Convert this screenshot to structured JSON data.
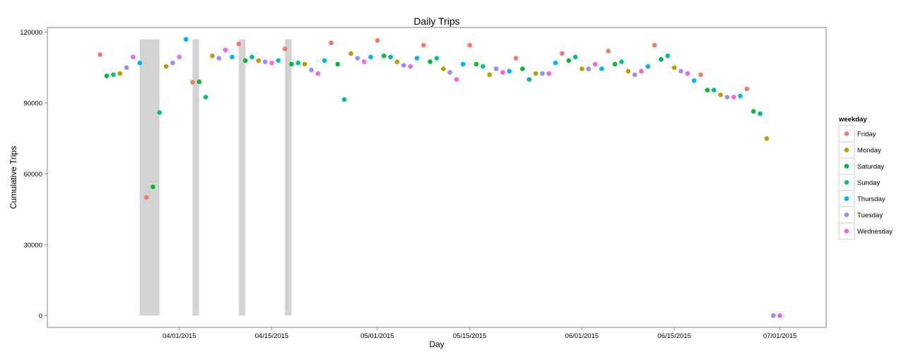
{
  "chart_data": {
    "type": "scatter",
    "title": "Daily Trips",
    "xlabel": "Day",
    "ylabel": "Cumulative Trips",
    "ylim": [
      -5000,
      122000
    ],
    "xlim": [
      "2015-03-12",
      "2015-07-08"
    ],
    "y_ticks": [
      {
        "value": 0,
        "label": "0"
      },
      {
        "value": 30000,
        "label": "30000"
      },
      {
        "value": 60000,
        "label": "60000"
      },
      {
        "value": 90000,
        "label": "90000"
      },
      {
        "value": 120000,
        "label": "120000"
      }
    ],
    "x_ticks": [
      {
        "value": "2015-04-01",
        "label": "04/01/2015"
      },
      {
        "value": "2015-04-15",
        "label": "04/15/2015"
      },
      {
        "value": "2015-05-01",
        "label": "05/01/2015"
      },
      {
        "value": "2015-05-15",
        "label": "05/15/2015"
      },
      {
        "value": "2015-06-01",
        "label": "06/01/2015"
      },
      {
        "value": "2015-06-15",
        "label": "06/15/2015"
      },
      {
        "value": "2015-07-01",
        "label": "07/01/2015"
      }
    ],
    "grid": false,
    "legend": {
      "title": "weekday",
      "position": "right"
    },
    "shaded_bands": [
      {
        "x_start": "2015-03-26",
        "x_end": "2015-03-29",
        "y_max": 117000
      },
      {
        "x_start": "2015-04-03",
        "x_end": "2015-04-04",
        "y_max": 117000
      },
      {
        "x_start": "2015-04-10",
        "x_end": "2015-04-11",
        "y_max": 117000
      },
      {
        "x_start": "2015-04-17",
        "x_end": "2015-04-18",
        "y_max": 117000
      }
    ],
    "series": [
      {
        "name": "Friday",
        "color": "#F8766D",
        "points": [
          {
            "x": "2015-03-20",
            "y": 110500
          },
          {
            "x": "2015-03-27",
            "y": 50000
          },
          {
            "x": "2015-04-03",
            "y": 98800
          },
          {
            "x": "2015-04-10",
            "y": 115000
          },
          {
            "x": "2015-04-17",
            "y": 113000
          },
          {
            "x": "2015-04-24",
            "y": 115500
          },
          {
            "x": "2015-05-01",
            "y": 116500
          },
          {
            "x": "2015-05-08",
            "y": 114500
          },
          {
            "x": "2015-05-15",
            "y": 114500
          },
          {
            "x": "2015-05-22",
            "y": 109000
          },
          {
            "x": "2015-05-29",
            "y": 111000
          },
          {
            "x": "2015-06-05",
            "y": 112000
          },
          {
            "x": "2015-06-12",
            "y": 114500
          },
          {
            "x": "2015-06-19",
            "y": 102000
          },
          {
            "x": "2015-06-26",
            "y": 96000
          }
        ]
      },
      {
        "name": "Monday",
        "color": "#B79F00",
        "points": [
          {
            "x": "2015-03-23",
            "y": 102500
          },
          {
            "x": "2015-03-30",
            "y": 105500
          },
          {
            "x": "2015-04-06",
            "y": 110000
          },
          {
            "x": "2015-04-13",
            "y": 108000
          },
          {
            "x": "2015-04-20",
            "y": 106500
          },
          {
            "x": "2015-04-27",
            "y": 111000
          },
          {
            "x": "2015-05-04",
            "y": 107500
          },
          {
            "x": "2015-05-11",
            "y": 104500
          },
          {
            "x": "2015-05-18",
            "y": 102000
          },
          {
            "x": "2015-05-25",
            "y": 102500
          },
          {
            "x": "2015-06-01",
            "y": 104500
          },
          {
            "x": "2015-06-08",
            "y": 103500
          },
          {
            "x": "2015-06-15",
            "y": 105000
          },
          {
            "x": "2015-06-22",
            "y": 93500
          },
          {
            "x": "2015-06-29",
            "y": 75000
          }
        ]
      },
      {
        "name": "Saturday",
        "color": "#00BA38",
        "points": [
          {
            "x": "2015-03-21",
            "y": 101500
          },
          {
            "x": "2015-03-28",
            "y": 54500
          },
          {
            "x": "2015-04-04",
            "y": 99000
          },
          {
            "x": "2015-04-11",
            "y": 108000
          },
          {
            "x": "2015-04-18",
            "y": 106500
          },
          {
            "x": "2015-04-25",
            "y": 106500
          },
          {
            "x": "2015-05-02",
            "y": 110000
          },
          {
            "x": "2015-05-09",
            "y": 107500
          },
          {
            "x": "2015-05-16",
            "y": 106500
          },
          {
            "x": "2015-05-23",
            "y": 104500
          },
          {
            "x": "2015-05-30",
            "y": 108000
          },
          {
            "x": "2015-06-06",
            "y": 106500
          },
          {
            "x": "2015-06-13",
            "y": 108500
          },
          {
            "x": "2015-06-20",
            "y": 95500
          },
          {
            "x": "2015-06-27",
            "y": 86500
          }
        ]
      },
      {
        "name": "Sunday",
        "color": "#00C08B",
        "points": [
          {
            "x": "2015-03-22",
            "y": 102000
          },
          {
            "x": "2015-03-29",
            "y": 86000
          },
          {
            "x": "2015-04-05",
            "y": 92500
          },
          {
            "x": "2015-04-12",
            "y": 109500
          },
          {
            "x": "2015-04-19",
            "y": 107000
          },
          {
            "x": "2015-04-26",
            "y": 91500
          },
          {
            "x": "2015-05-03",
            "y": 109500
          },
          {
            "x": "2015-05-10",
            "y": 109000
          },
          {
            "x": "2015-05-17",
            "y": 105500
          },
          {
            "x": "2015-05-24",
            "y": 100000
          },
          {
            "x": "2015-05-31",
            "y": 109500
          },
          {
            "x": "2015-06-07",
            "y": 107500
          },
          {
            "x": "2015-06-14",
            "y": 110000
          },
          {
            "x": "2015-06-21",
            "y": 95500
          },
          {
            "x": "2015-06-28",
            "y": 85500
          }
        ]
      },
      {
        "name": "Thursday",
        "color": "#00B4F0",
        "points": [
          {
            "x": "2015-03-26",
            "y": 107000
          },
          {
            "x": "2015-04-02",
            "y": 117000
          },
          {
            "x": "2015-04-09",
            "y": 109500
          },
          {
            "x": "2015-04-16",
            "y": 108000
          },
          {
            "x": "2015-04-23",
            "y": 108000
          },
          {
            "x": "2015-04-30",
            "y": 109500
          },
          {
            "x": "2015-05-07",
            "y": 109000
          },
          {
            "x": "2015-05-14",
            "y": 106500
          },
          {
            "x": "2015-05-21",
            "y": 103500
          },
          {
            "x": "2015-05-28",
            "y": 107000
          },
          {
            "x": "2015-06-04",
            "y": 104500
          },
          {
            "x": "2015-06-11",
            "y": 105500
          },
          {
            "x": "2015-06-18",
            "y": 99500
          },
          {
            "x": "2015-06-25",
            "y": 93000
          }
        ]
      },
      {
        "name": "Tuesday",
        "color": "#9A8AFF",
        "points": [
          {
            "x": "2015-03-24",
            "y": 105000
          },
          {
            "x": "2015-03-31",
            "y": 107000
          },
          {
            "x": "2015-04-07",
            "y": 109000
          },
          {
            "x": "2015-04-14",
            "y": 107500
          },
          {
            "x": "2015-04-21",
            "y": 104000
          },
          {
            "x": "2015-04-28",
            "y": 109000
          },
          {
            "x": "2015-05-05",
            "y": 106000
          },
          {
            "x": "2015-05-12",
            "y": 103000
          },
          {
            "x": "2015-05-19",
            "y": 104500
          },
          {
            "x": "2015-05-26",
            "y": 102500
          },
          {
            "x": "2015-06-02",
            "y": 104500
          },
          {
            "x": "2015-06-09",
            "y": 102000
          },
          {
            "x": "2015-06-16",
            "y": 103500
          },
          {
            "x": "2015-06-23",
            "y": 92500
          },
          {
            "x": "2015-06-30",
            "y": 0
          }
        ]
      },
      {
        "name": "Wednesday",
        "color": "#F564E3",
        "points": [
          {
            "x": "2015-03-25",
            "y": 109500
          },
          {
            "x": "2015-04-01",
            "y": 109500
          },
          {
            "x": "2015-04-08",
            "y": 112500
          },
          {
            "x": "2015-04-15",
            "y": 107000
          },
          {
            "x": "2015-04-22",
            "y": 102500
          },
          {
            "x": "2015-04-29",
            "y": 107500
          },
          {
            "x": "2015-05-06",
            "y": 105500
          },
          {
            "x": "2015-05-13",
            "y": 100000
          },
          {
            "x": "2015-05-20",
            "y": 103000
          },
          {
            "x": "2015-05-27",
            "y": 102500
          },
          {
            "x": "2015-06-03",
            "y": 106500
          },
          {
            "x": "2015-06-10",
            "y": 103500
          },
          {
            "x": "2015-06-17",
            "y": 102500
          },
          {
            "x": "2015-06-24",
            "y": 92500
          },
          {
            "x": "2015-07-01",
            "y": 0
          }
        ]
      }
    ]
  }
}
